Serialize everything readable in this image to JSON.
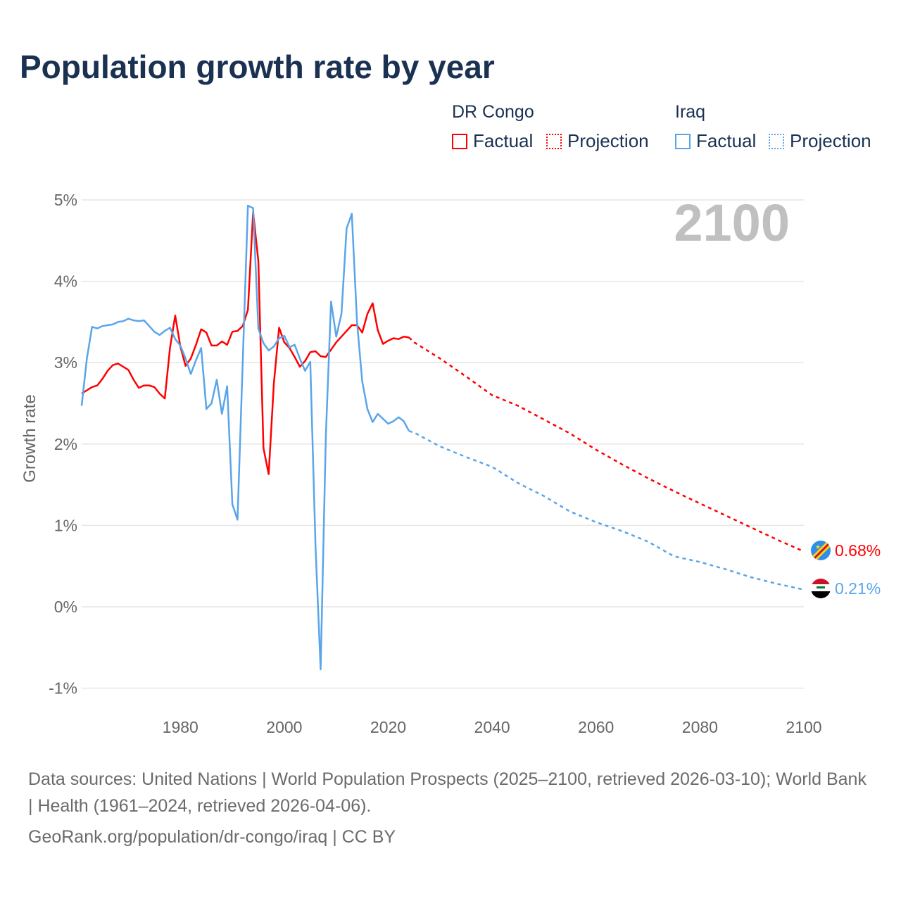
{
  "title": "Population growth rate by year",
  "legend": {
    "groups": [
      {
        "country": "DR Congo",
        "color": "#ff0000",
        "factual": "Factual",
        "projection": "Projection"
      },
      {
        "country": "Iraq",
        "color": "#5aa5ea",
        "factual": "Factual",
        "projection": "Projection"
      }
    ]
  },
  "year_watermark": "2100",
  "end_labels": {
    "congo": "0.68%",
    "iraq": "0.21%"
  },
  "footer": {
    "sources": "Data sources: United Nations | World Population Prospects (2025–2100, retrieved 2026-03-10); World Bank | Health (1961–2024, retrieved 2026-04-06).",
    "link": "GeoRank.org/population/dr-congo/iraq | CC BY"
  },
  "chart_data": {
    "type": "line",
    "title": "Population growth rate by year",
    "xlabel": "",
    "ylabel": "Growth rate",
    "xlim": [
      1961,
      2100
    ],
    "ylim": [
      -1,
      5
    ],
    "x_ticks": [
      "1980",
      "2000",
      "2020",
      "2040",
      "2060",
      "2080",
      "2100"
    ],
    "y_ticks": [
      "-1%",
      "0%",
      "1%",
      "2%",
      "3%",
      "4%",
      "5%"
    ],
    "grid": true,
    "legend_position": "top-right",
    "series": [
      {
        "name": "DR Congo Factual",
        "color": "#ff0000",
        "style": "solid",
        "x_start": 1961,
        "step": 1,
        "values": [
          2.62,
          2.66,
          2.7,
          2.72,
          2.8,
          2.9,
          2.97,
          2.99,
          2.95,
          2.91,
          2.79,
          2.69,
          2.72,
          2.72,
          2.7,
          2.62,
          2.56,
          3.18,
          3.58,
          3.2,
          2.96,
          3.05,
          3.22,
          3.41,
          3.37,
          3.21,
          3.21,
          3.26,
          3.22,
          3.38,
          3.39,
          3.45,
          3.65,
          4.85,
          4.25,
          1.95,
          1.63,
          2.75,
          3.43,
          3.25,
          3.18,
          3.07,
          2.95,
          3.02,
          3.13,
          3.14,
          3.08,
          3.07,
          3.16,
          3.25,
          3.32,
          3.39,
          3.46,
          3.46,
          3.37,
          3.6,
          3.73,
          3.4,
          3.23,
          3.27,
          3.3,
          3.29,
          3.32,
          3.31
        ]
      },
      {
        "name": "DR Congo Projection",
        "color": "#ff0000",
        "style": "dotted",
        "x_start": 2024,
        "step": 5,
        "values": [
          3.31,
          3.25,
          3.05,
          2.83,
          2.6,
          2.47,
          2.3,
          2.13,
          1.93,
          1.75,
          1.58,
          1.42,
          1.27,
          1.12,
          0.97,
          0.82,
          0.68
        ],
        "x": [
          2024,
          2025,
          2030,
          2035,
          2040,
          2045,
          2050,
          2055,
          2060,
          2065,
          2070,
          2075,
          2080,
          2085,
          2090,
          2095,
          2100
        ]
      },
      {
        "name": "Iraq Factual",
        "color": "#5aa5ea",
        "style": "solid",
        "x_start": 1961,
        "step": 1,
        "values": [
          2.47,
          3.05,
          3.44,
          3.42,
          3.45,
          3.46,
          3.47,
          3.5,
          3.51,
          3.54,
          3.52,
          3.51,
          3.52,
          3.45,
          3.38,
          3.34,
          3.39,
          3.43,
          3.29,
          3.21,
          3.05,
          2.86,
          3.03,
          3.18,
          2.43,
          2.5,
          2.79,
          2.37,
          2.71,
          1.26,
          1.07,
          3.0,
          4.93,
          4.9,
          3.42,
          3.24,
          3.15,
          3.2,
          3.3,
          3.33,
          3.19,
          3.22,
          3.05,
          2.9,
          3.01,
          0.75,
          -0.77,
          2.1,
          3.75,
          3.32,
          3.6,
          4.65,
          4.83,
          3.5,
          2.77,
          2.43,
          2.27,
          2.37,
          2.31,
          2.25,
          2.28,
          2.33,
          2.28,
          2.16
        ]
      },
      {
        "name": "Iraq Projection",
        "color": "#5aa5ea",
        "style": "dotted",
        "x": [
          2024,
          2025,
          2030,
          2035,
          2040,
          2045,
          2050,
          2055,
          2060,
          2065,
          2070,
          2075,
          2080,
          2085,
          2090,
          2095,
          2100
        ],
        "values": [
          2.16,
          2.14,
          1.97,
          1.84,
          1.72,
          1.52,
          1.36,
          1.17,
          1.04,
          0.93,
          0.8,
          0.62,
          0.55,
          0.46,
          0.36,
          0.28,
          0.21
        ]
      }
    ]
  }
}
